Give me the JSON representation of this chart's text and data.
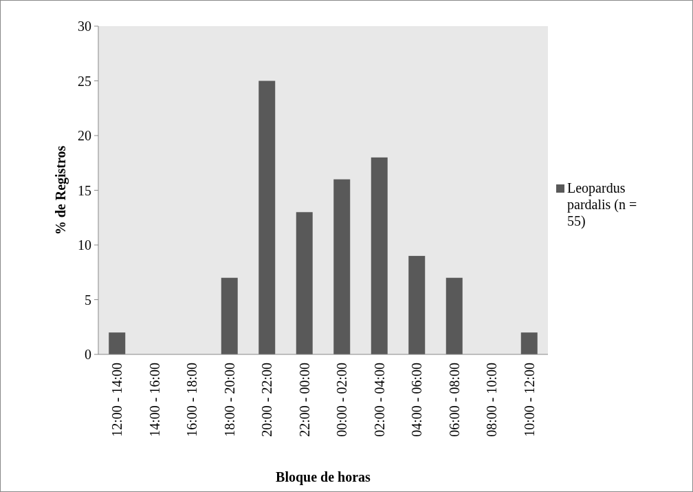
{
  "chart_data": {
    "type": "bar",
    "xlabel": "Bloque de horas",
    "ylabel": "% de Registros",
    "categories": [
      "12:00 - 14:00",
      "14:00 - 16:00",
      "16:00 - 18:00",
      "18:00 - 20:00",
      "20:00 - 22:00",
      "22:00 - 00:00",
      "00:00 - 02:00",
      "02:00 - 04:00",
      "04:00 - 06:00",
      "06:00 - 08:00",
      "08:00 - 10:00",
      "10:00 - 12:00"
    ],
    "series": [
      {
        "name": "Leopardus pardalis (n = 55)",
        "color": "#595959",
        "values": [
          2,
          0,
          0,
          7,
          25,
          13,
          16,
          18,
          9,
          7,
          0,
          2
        ]
      }
    ],
    "ylim": [
      0,
      30
    ],
    "yticks": [
      0,
      5,
      10,
      15,
      20,
      25,
      30
    ],
    "grid": false,
    "legend": "right"
  }
}
